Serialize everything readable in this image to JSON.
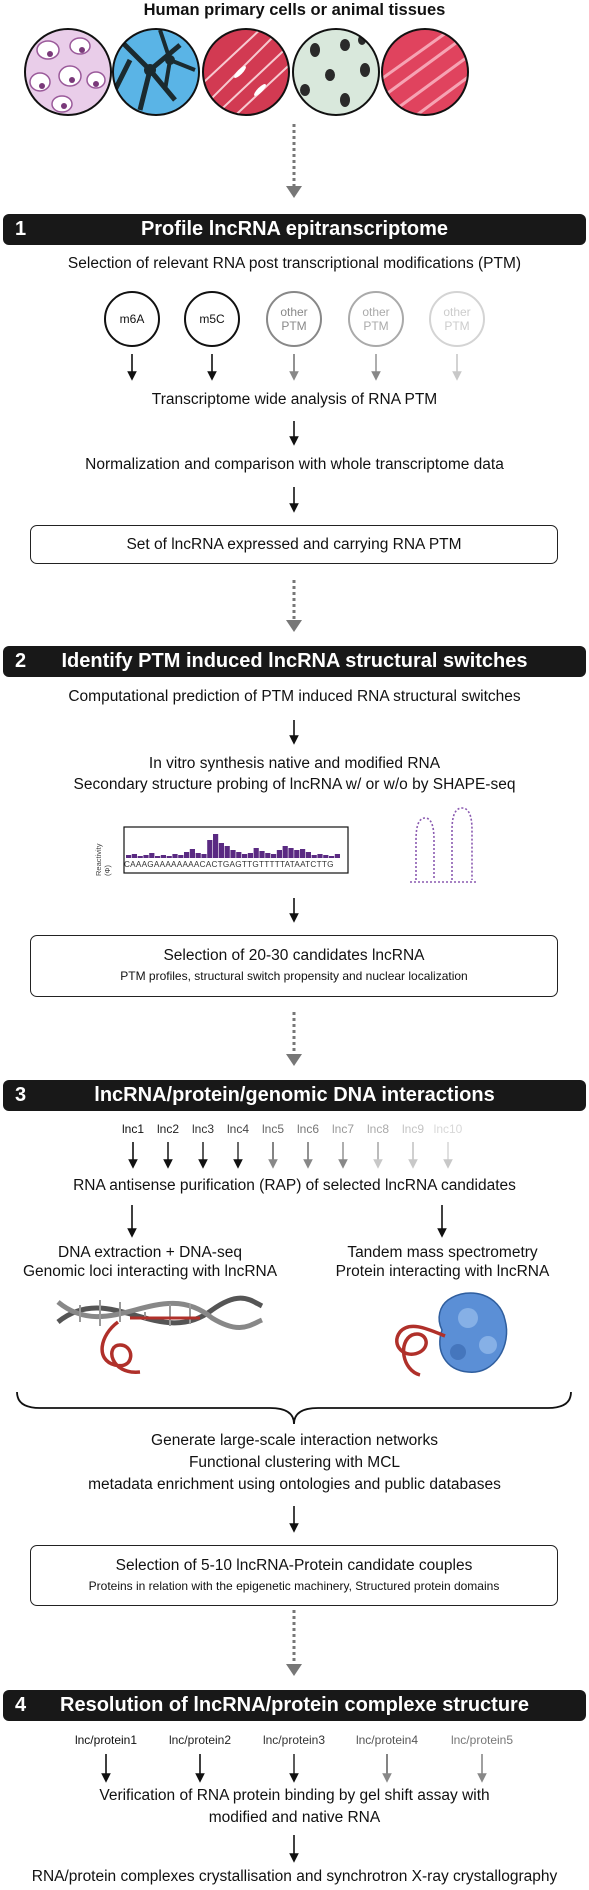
{
  "header": {
    "title": "Human primary cells or animal tissues"
  },
  "section1": {
    "number": "1",
    "title": "Profile lncRNA epitranscriptome",
    "subtitle": "Selection of relevant RNA post transcriptional modifications (PTM)",
    "ptm": [
      {
        "label": "m6A"
      },
      {
        "label": "m5C"
      },
      {
        "label": "other PTM"
      },
      {
        "label": "other PTM"
      },
      {
        "label": "other PTM"
      }
    ],
    "step1": "Transcriptome wide analysis of RNA PTM",
    "step2": "Normalization and comparison with whole transcriptome data",
    "box": "Set of lncRNA expressed and carrying RNA PTM"
  },
  "section2": {
    "number": "2",
    "title": "Identify PTM induced lncRNA structural switches",
    "step1": "Computational prediction of PTM induced RNA structural switches",
    "step2a": "In vitro synthesis native and modified RNA",
    "step2b": "Secondary structure probing of lncRNA w/ or w/o  by SHAPE-seq",
    "reactivity_label": "Reactivity (Φ)",
    "sequence": "CAAAGAAAAAAAACACTGAGTTGTTTTTATAATCTTG",
    "box_title": "Selection of 20-30 candidates lncRNA",
    "box_sub": "PTM profiles, structural switch propensity and nuclear localization"
  },
  "section3": {
    "number": "3",
    "title": "lncRNA/protein/genomic DNA interactions",
    "lncs": [
      "lnc1",
      "lnc2",
      "lnc3",
      "lnc4",
      "lnc5",
      "lnc6",
      "lnc7",
      "lnc8",
      "lnc9",
      "lnc10"
    ],
    "step1": "RNA antisense purification (RAP) of selected lncRNA candidates",
    "left_a": "DNA extraction + DNA-seq",
    "left_b": "Genomic loci interacting with lncRNA",
    "right_a": "Tandem mass spectrometry",
    "right_b": "Protein interacting with lncRNA",
    "net_a": "Generate large-scale interaction networks",
    "net_b": "Functional clustering with MCL",
    "net_c": "metadata enrichment using ontologies and public databases",
    "box_title": "Selection of 5-10 lncRNA-Protein candidate couples",
    "box_sub": "Proteins in relation with the epigenetic machinery, Structured protein domains"
  },
  "section4": {
    "number": "4",
    "title": "Resolution of lncRNA/protein complexe structure",
    "pairs": [
      "lnc/protein1",
      "lnc/protein2",
      "lnc/protein3",
      "lnc/protein4",
      "lnc/protein5"
    ],
    "step1a": "Verification of RNA protein binding by gel shift assay with",
    "step1b": "modified and native RNA",
    "step2": "RNA/protein complexes crystallisation and synchrotron X-ray crystallography"
  },
  "colors": {
    "banner": "#181818",
    "reactivity_bar": "#5a2a82",
    "rna_red": "#b0302a",
    "protein_blue": "#5b8fd6"
  }
}
